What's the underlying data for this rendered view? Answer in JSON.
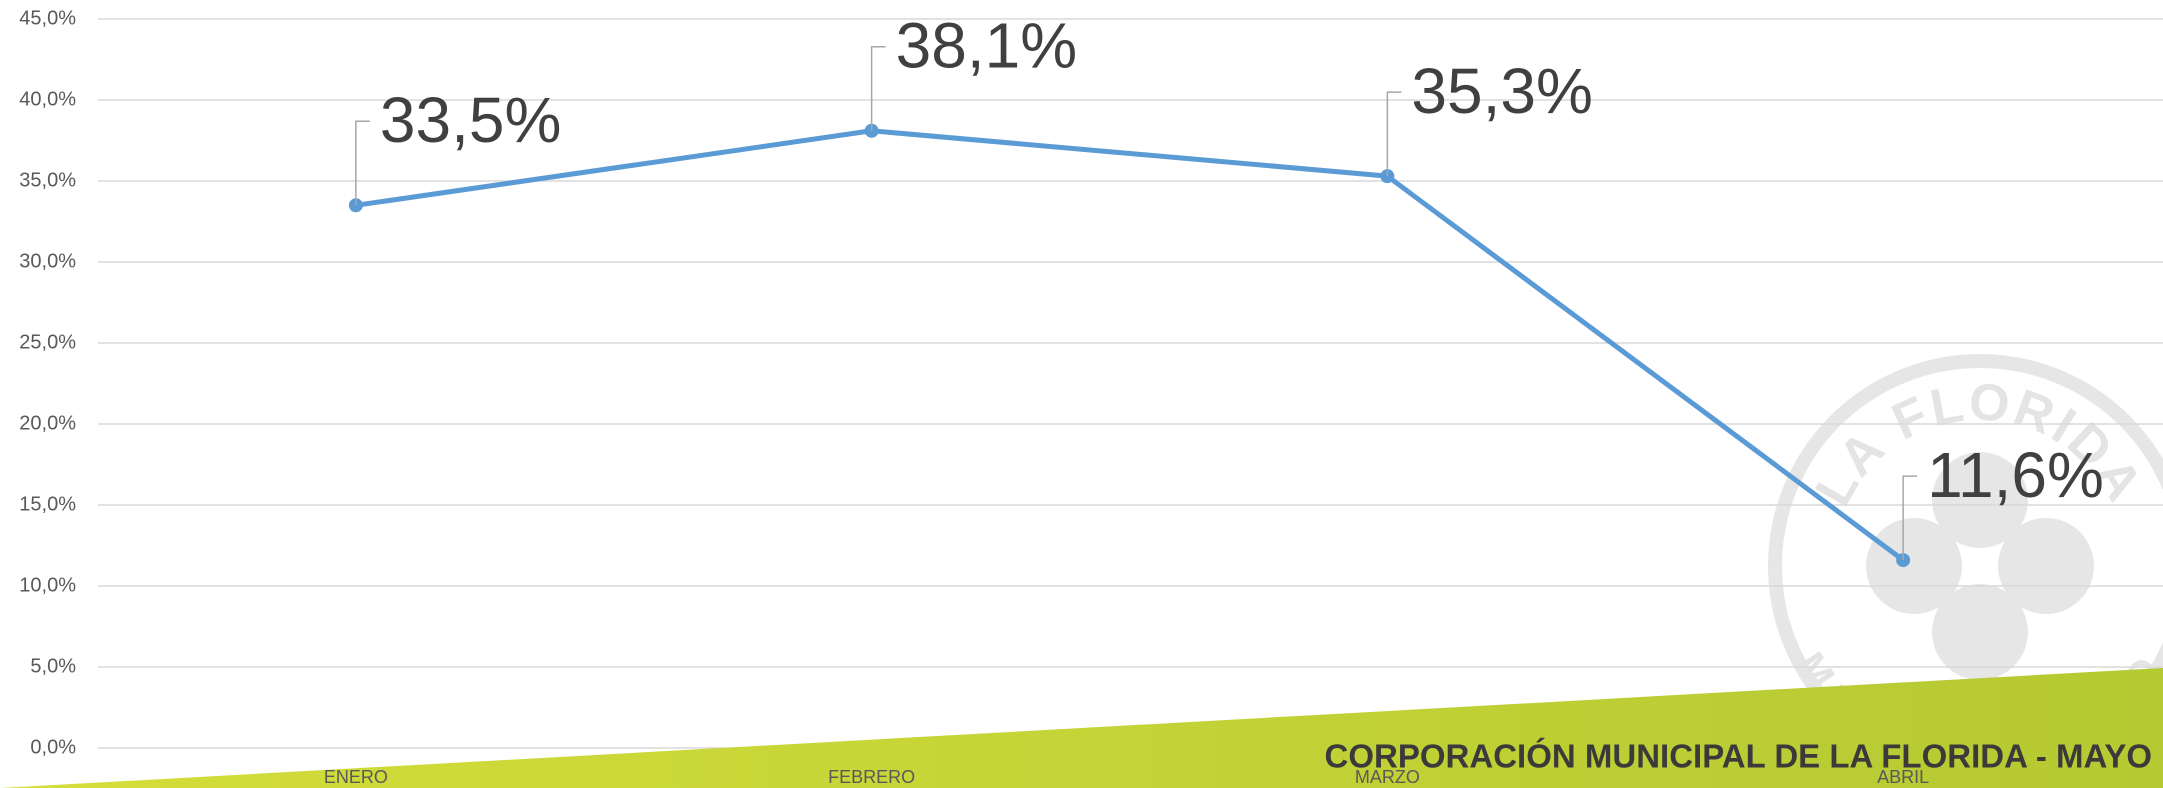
{
  "chart_data": {
    "type": "line",
    "categories": [
      "ENERO",
      "FEBRERO",
      "MARZO",
      "ABRIL"
    ],
    "values": [
      33.5,
      38.1,
      35.3,
      11.6
    ],
    "value_labels": [
      "33,5%",
      "38,1%",
      "35,3%",
      "11,6%"
    ],
    "color": "#5b9bd5",
    "ylim": [
      0,
      45
    ],
    "yticks": [
      {
        "value": 0,
        "label": "0,0%"
      },
      {
        "value": 5,
        "label": "5,0%"
      },
      {
        "value": 10,
        "label": "10,0%"
      },
      {
        "value": 15,
        "label": "15,0%"
      },
      {
        "value": 20,
        "label": "20,0%"
      },
      {
        "value": 25,
        "label": "25,0%"
      },
      {
        "value": 30,
        "label": "30,0%"
      },
      {
        "value": 35,
        "label": "35,0%"
      },
      {
        "value": 40,
        "label": "40,0%"
      },
      {
        "value": 45,
        "label": "45,0%"
      }
    ],
    "grid": true,
    "footer": "CORPORACIÓN MUNICIPAL DE LA FLORIDA - MAYO",
    "watermark": [
      "LA FLORIDA",
      "MUNICIPALIDAD"
    ]
  }
}
